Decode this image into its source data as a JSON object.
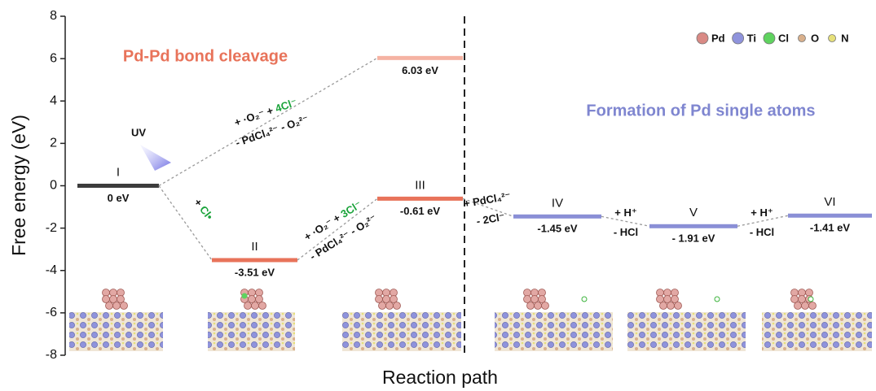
{
  "chart_data": {
    "type": "energy-levels",
    "ylabel": "Free energy (eV)",
    "xlabel": "Reaction path",
    "ylim": [
      -8,
      8
    ],
    "yticks": [
      -8,
      -6,
      -4,
      -2,
      0,
      2,
      4,
      6,
      8
    ],
    "categories": [
      "I",
      "II",
      "III",
      "IV",
      "V",
      "VI"
    ],
    "series": [
      {
        "values": [
          0,
          -3.51,
          -0.61,
          -1.45,
          -1.91,
          -1.41
        ],
        "value_labels": [
          "0 eV",
          "-3.51 eV",
          "-0.61 eV",
          "-1.45 eV",
          "- 1.91 eV",
          "-1.41 eV"
        ],
        "colors": [
          "#3c3c3c",
          "#e8735a",
          "#e8735a",
          "#8a8fd6",
          "#8a8fd6",
          "#8a8fd6"
        ]
      },
      {
        "values": [
          null,
          null,
          6.03,
          null,
          null,
          null
        ],
        "value_labels": [
          null,
          null,
          "6.03 eV",
          null,
          null,
          null
        ],
        "color": "#f5b3a3"
      }
    ],
    "annotations": {
      "left_title": "Pd-Pd bond cleavage",
      "right_title": "Formation of Pd single atoms",
      "uv": "UV",
      "steps": [
        {
          "above": [
            {
              "text": "+ ·O₂⁻ + "
            },
            {
              "text": "4Cl⁻",
              "color": "#1aa33a"
            }
          ],
          "below": [
            {
              "text": "- PdCl₄²⁻ - O₂²⁻"
            }
          ]
        },
        {
          "above": [
            {
              "text": "+ "
            },
            {
              "text": "Cl•",
              "color": "#1aa33a"
            }
          ],
          "below": []
        },
        {
          "above": [
            {
              "text": "+ ·O₂⁻ + "
            },
            {
              "text": "3Cl⁻",
              "color": "#1aa33a"
            }
          ],
          "below": [
            {
              "text": "- PdCl₄²⁻ - O₂²⁻"
            }
          ]
        },
        {
          "above": [
            {
              "text": "+ PdCl₄²⁻"
            }
          ],
          "below": [
            {
              "text": "- 2Cl⁻"
            }
          ]
        },
        {
          "above": [
            {
              "text": "+ H⁺"
            }
          ],
          "below": [
            {
              "text": "- HCl"
            }
          ]
        },
        {
          "above": [
            {
              "text": "+ H⁺"
            }
          ],
          "below": [
            {
              "text": "- HCl"
            }
          ]
        }
      ]
    },
    "legend": [
      {
        "name": "Pd",
        "color": "#d98a85"
      },
      {
        "name": "Ti",
        "color": "#8f93dc"
      },
      {
        "name": "Cl",
        "color": "#5fd35f"
      },
      {
        "name": "O",
        "color": "#d9b08c"
      },
      {
        "name": "N",
        "color": "#e6e07a"
      }
    ]
  }
}
